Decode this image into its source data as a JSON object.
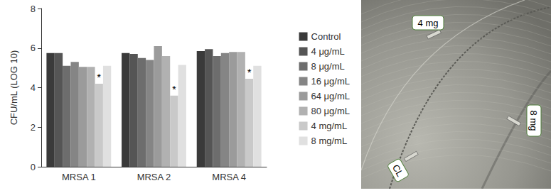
{
  "chart_data": {
    "type": "bar",
    "y_label": "CFU/mL (LOG 10)",
    "categories": [
      "MRSA 1",
      "MRSA 2",
      "MRSA 4"
    ],
    "series": [
      {
        "name": "Control",
        "color": "#3a3a3a",
        "values": [
          5.75,
          5.75,
          5.85
        ]
      },
      {
        "name": "4 μg/mL",
        "color": "#555555",
        "values": [
          5.75,
          5.7,
          5.95
        ]
      },
      {
        "name": "8 μg/mL",
        "color": "#6d6d6d",
        "values": [
          5.1,
          5.5,
          5.6
        ]
      },
      {
        "name": "16 μg/mL",
        "color": "#858585",
        "values": [
          5.3,
          5.4,
          5.75
        ]
      },
      {
        "name": "64 μg/mL",
        "color": "#9b9b9b",
        "values": [
          5.05,
          6.1,
          5.8
        ]
      },
      {
        "name": "80 μg/mL",
        "color": "#b1b1b1",
        "values": [
          5.05,
          5.6,
          5.8
        ]
      },
      {
        "name": "4 mg/mL",
        "color": "#c9c9c9",
        "values": [
          4.2,
          3.6,
          4.45
        ]
      },
      {
        "name": "8 mg/mL",
        "color": "#e0e0e0",
        "values": [
          5.1,
          5.15,
          5.1
        ]
      }
    ],
    "annotations": [
      {
        "text": "*",
        "series": "4 mg/mL",
        "category": "MRSA 1"
      },
      {
        "text": "*",
        "series": "4 mg/mL",
        "category": "MRSA 2"
      },
      {
        "text": "*",
        "series": "4 mg/mL",
        "category": "MRSA 4"
      }
    ],
    "ylim": [
      0,
      8
    ],
    "yticks": [
      0,
      2,
      4,
      6,
      8
    ],
    "grid": false,
    "legend": "right"
  },
  "photo": {
    "labels": [
      "4 mg",
      "8 mg",
      "CL"
    ]
  }
}
